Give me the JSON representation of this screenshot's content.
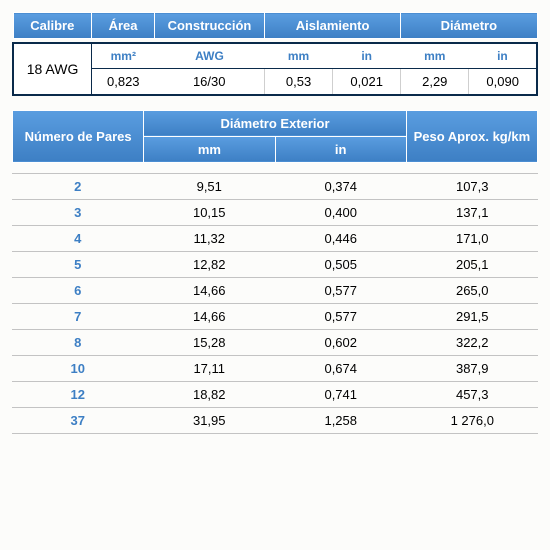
{
  "colors": {
    "header_bg_top": "#5a9de0",
    "header_bg_bottom": "#3d7fc4",
    "header_text": "#ffffff",
    "border_dark": "#0a2a4a",
    "accent_text": "#3d7fc4",
    "row_border": "#c3c3c3",
    "page_bg": "#fcfcfa"
  },
  "table1": {
    "headers": {
      "calibre": "Calibre",
      "area": "Área",
      "construccion": "Construcción",
      "aislamiento": "Aislamiento",
      "diametro": "Diámetro"
    },
    "subheaders": {
      "area": "mm²",
      "construccion": "AWG",
      "ais_mm": "mm",
      "ais_in": "in",
      "dia_mm": "mm",
      "dia_in": "in"
    },
    "row": {
      "calibre": "18 AWG",
      "area": "0,823",
      "construccion": "16/30",
      "ais_mm": "0,53",
      "ais_in": "0,021",
      "dia_mm": "2,29",
      "dia_in": "0,090"
    }
  },
  "table2": {
    "headers": {
      "pares": "Número de Pares",
      "diam_ext": "Diámetro Exterior",
      "peso": "Peso Aprox. kg/km",
      "mm": "mm",
      "in": "in"
    },
    "rows": [
      {
        "pares": "2",
        "mm": "9,51",
        "in": "0,374",
        "peso": "107,3"
      },
      {
        "pares": "3",
        "mm": "10,15",
        "in": "0,400",
        "peso": "137,1"
      },
      {
        "pares": "4",
        "mm": "11,32",
        "in": "0,446",
        "peso": "171,0"
      },
      {
        "pares": "5",
        "mm": "12,82",
        "in": "0,505",
        "peso": "205,1"
      },
      {
        "pares": "6",
        "mm": "14,66",
        "in": "0,577",
        "peso": "265,0"
      },
      {
        "pares": "7",
        "mm": "14,66",
        "in": "0,577",
        "peso": "291,5"
      },
      {
        "pares": "8",
        "mm": "15,28",
        "in": "0,602",
        "peso": "322,2"
      },
      {
        "pares": "10",
        "mm": "17,11",
        "in": "0,674",
        "peso": "387,9"
      },
      {
        "pares": "12",
        "mm": "18,82",
        "in": "0,741",
        "peso": "457,3"
      },
      {
        "pares": "37",
        "mm": "31,95",
        "in": "1,258",
        "peso": "1 276,0"
      }
    ]
  }
}
